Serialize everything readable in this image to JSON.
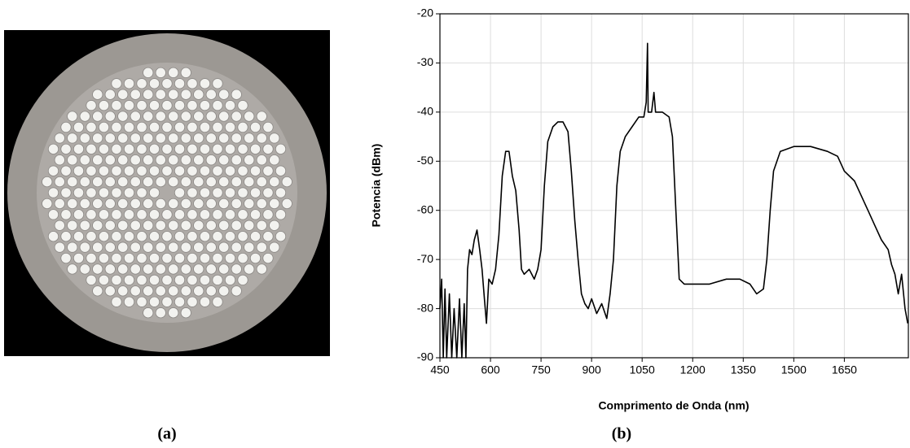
{
  "panel_labels": [
    "(a)",
    "(b)"
  ],
  "chart_data": {
    "type": "line",
    "x_label": "Comprimento de Onda (nm)",
    "y_label": "Potencia (dBm)",
    "color": "#000000",
    "grid": true,
    "xlim": [
      450,
      1840
    ],
    "ylim": [
      -90,
      -20
    ],
    "xticks": [
      450,
      600,
      750,
      900,
      1050,
      1200,
      1350,
      1500,
      1650
    ],
    "yticks": [
      -90,
      -80,
      -70,
      -60,
      -50,
      -40,
      -30,
      -20
    ],
    "x": [
      450,
      455,
      460,
      465,
      470,
      478,
      485,
      492,
      500,
      508,
      515,
      522,
      527,
      532,
      538,
      545,
      552,
      560,
      568,
      575,
      582,
      588,
      595,
      605,
      615,
      625,
      635,
      645,
      655,
      665,
      675,
      685,
      692,
      700,
      715,
      730,
      740,
      750,
      760,
      770,
      785,
      800,
      815,
      830,
      840,
      850,
      860,
      870,
      880,
      890,
      900,
      915,
      930,
      945,
      955,
      965,
      975,
      985,
      1000,
      1020,
      1040,
      1055,
      1062,
      1066,
      1068,
      1078,
      1085,
      1090,
      1110,
      1130,
      1140,
      1150,
      1160,
      1175,
      1200,
      1250,
      1300,
      1340,
      1370,
      1390,
      1410,
      1420,
      1430,
      1440,
      1460,
      1500,
      1550,
      1600,
      1630,
      1650,
      1680,
      1700,
      1720,
      1740,
      1760,
      1780,
      1790,
      1800,
      1810,
      1820,
      1830,
      1838
    ],
    "values": [
      -80,
      -74,
      -90,
      -76,
      -90,
      -77,
      -90,
      -80,
      -90,
      -78,
      -90,
      -79,
      -90,
      -72,
      -68,
      -69,
      -66,
      -64,
      -68,
      -72,
      -78,
      -83,
      -74,
      -75,
      -72,
      -65,
      -53,
      -48,
      -48,
      -53,
      -56,
      -64,
      -72,
      -73,
      -72,
      -74,
      -72,
      -68,
      -55,
      -46,
      -43,
      -42,
      -42,
      -44,
      -52,
      -62,
      -70,
      -77,
      -79,
      -80,
      -78,
      -81,
      -79,
      -82,
      -77,
      -70,
      -55,
      -48,
      -45,
      -43,
      -41,
      -41,
      -38,
      -26,
      -40,
      -40,
      -36,
      -40,
      -40,
      -41,
      -45,
      -60,
      -74,
      -75,
      -75,
      -75,
      -74,
      -74,
      -75,
      -77,
      -76,
      -70,
      -60,
      -52,
      -48,
      -47,
      -47,
      -48,
      -49,
      -52,
      -54,
      -57,
      -60,
      -63,
      -66,
      -68,
      -71,
      -73,
      -77,
      -73,
      -80,
      -83
    ]
  }
}
